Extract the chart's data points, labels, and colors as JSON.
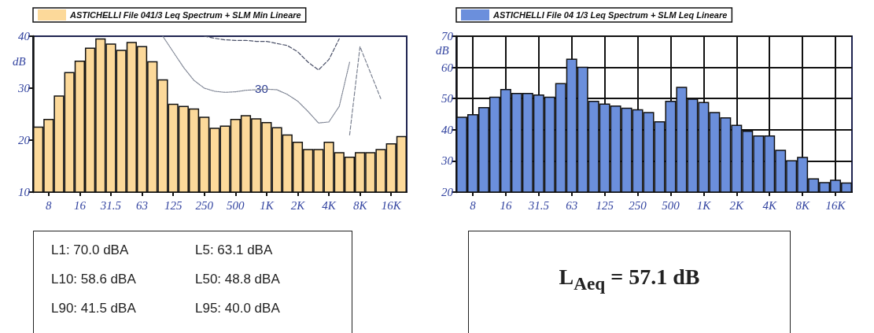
{
  "chart_data": [
    {
      "type": "bar",
      "ylabel": "dB",
      "categories": [
        null,
        "8",
        null,
        null,
        "16",
        null,
        null,
        "31.5",
        null,
        null,
        "63",
        null,
        null,
        "125",
        null,
        null,
        "250",
        null,
        null,
        "500",
        null,
        null,
        "1K",
        null,
        null,
        "2K",
        null,
        null,
        "4K",
        null,
        null,
        "8K",
        null,
        null,
        "16K",
        null
      ],
      "series": [
        {
          "name": "ASTICHELLI File 041/3 Leq Spectrum + SLM Min Lineare",
          "color": "#fcd99a",
          "values": [
            22.6,
            24.1,
            28.6,
            33.1,
            35.3,
            37.8,
            39.6,
            38.6,
            37.4,
            38.9,
            38.1,
            35.2,
            31.7,
            27,
            26.6,
            26.1,
            24.5,
            22.4,
            22.8,
            24.1,
            24.8,
            24.2,
            23.5,
            22.5,
            21.1,
            19.7,
            18.3,
            18.3,
            19.7,
            17.7,
            16.8,
            17.7,
            17.7,
            18.3,
            19.4,
            20.8
          ]
        },
        {
          "type": "line",
          "color": "#4a5068",
          "line_style": "dashed",
          "values": [
            null,
            null,
            null,
            null,
            null,
            null,
            null,
            null,
            null,
            null,
            null,
            null,
            null,
            null,
            null,
            null,
            40,
            39.6,
            39.3,
            39.2,
            39.2,
            39.0,
            39.0,
            38.6,
            38.2,
            37,
            35,
            33.5,
            35.5,
            39.5,
            null,
            null,
            null,
            null,
            null,
            null
          ]
        },
        {
          "type": "line",
          "color": "#7a8090",
          "line_style": "dotted",
          "values": [
            null,
            null,
            null,
            null,
            null,
            null,
            null,
            null,
            null,
            null,
            null,
            null,
            40,
            37,
            34,
            31.5,
            30,
            29.4,
            29.2,
            29.3,
            29.6,
            29.7,
            29.8,
            29.7,
            28.8,
            27.5,
            25.5,
            23.3,
            23.5,
            26.5,
            35,
            null,
            null,
            null,
            null,
            null
          ]
        },
        {
          "type": "line",
          "color": "#7a8090",
          "line_style": "dashed",
          "values": [
            null,
            null,
            null,
            null,
            null,
            null,
            null,
            null,
            null,
            null,
            null,
            null,
            null,
            null,
            null,
            null,
            null,
            null,
            null,
            null,
            null,
            null,
            null,
            null,
            null,
            null,
            null,
            null,
            null,
            null,
            21,
            38,
            33,
            28,
            null,
            null
          ]
        }
      ],
      "annotations": [
        "30"
      ],
      "ylim": [
        10,
        40
      ],
      "yticks": [
        10,
        20,
        30,
        40
      ],
      "grid": false,
      "legend": "top",
      "marker": "none"
    },
    {
      "type": "bar",
      "ylabel": "dB",
      "categories": [
        null,
        "8",
        null,
        null,
        "16",
        null,
        null,
        "31.5",
        null,
        null,
        "63",
        null,
        null,
        "125",
        null,
        null,
        "250",
        null,
        null,
        "500",
        null,
        null,
        "1K",
        null,
        null,
        "2K",
        null,
        null,
        "4K",
        null,
        null,
        "8K",
        null,
        null,
        "16K",
        null
      ],
      "series": [
        {
          "name": "ASTICHELLI File 04 1/3 Leq Spectrum + SLM Leq Lineare",
          "color": "#6b8fdc",
          "values": [
            44.2,
            45.0,
            47.3,
            50.6,
            53.1,
            51.8,
            51.8,
            51.3,
            50.6,
            55.0,
            62.8,
            60.2,
            49.3,
            48.4,
            47.8,
            47.1,
            46.6,
            45.7,
            42.7,
            49.3,
            53.8,
            50.0,
            48.9,
            45.7,
            44.0,
            41.6,
            39.7,
            38.2,
            38.2,
            33.6,
            30.2,
            31.3,
            24.4,
            23.2,
            24.0,
            23.1
          ]
        }
      ],
      "ylim": [
        20,
        70
      ],
      "yticks": [
        20,
        30,
        40,
        50,
        60,
        70
      ],
      "grid": true,
      "legend": "top"
    },
    {
      "type": "other",
      "annotations": [
        "L1: 70.0 dBA",
        "L5: 63.1 dBA",
        "L10: 58.6 dBA",
        "L50: 48.8 dBA",
        "L90: 41.5 dBA",
        "L95: 40.0 dBA"
      ]
    },
    {
      "type": "other",
      "annotations": [
        "L$_{Aeq}$ = 57.1 dB"
      ]
    }
  ]
}
